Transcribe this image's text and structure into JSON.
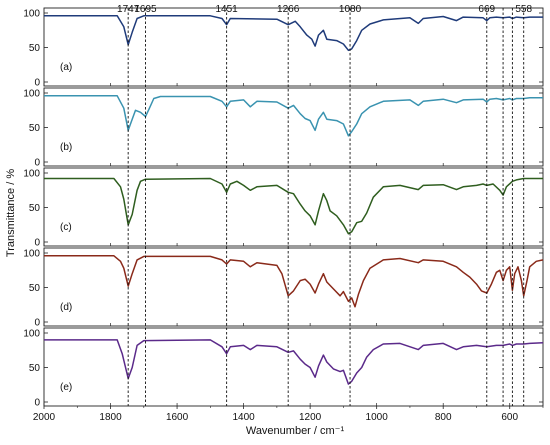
{
  "chart_data": {
    "type": "line",
    "xlabel": "Wavenumber / cm⁻¹",
    "ylabel": "Transmittance / %",
    "xlim": [
      2000,
      500
    ],
    "x_reversed": true,
    "x_ticks": [
      2000,
      1800,
      1600,
      1400,
      1200,
      1000,
      800,
      600
    ],
    "ylim": [
      0,
      100
    ],
    "y_ticks": [
      0,
      50,
      100
    ],
    "grid": false,
    "reference_lines": [
      1747,
      1695,
      1451,
      1266,
      1080,
      669,
      620,
      592,
      558
    ],
    "peak_labels": [
      1747,
      1695,
      1451,
      1266,
      1080,
      669,
      558
    ],
    "panels": [
      {
        "label": "(a)",
        "color": "#1f3b7a",
        "baseline": 96,
        "points": [
          [
            2000,
            96
          ],
          [
            1780,
            96
          ],
          [
            1760,
            80
          ],
          [
            1747,
            54
          ],
          [
            1735,
            72
          ],
          [
            1720,
            92
          ],
          [
            1700,
            96
          ],
          [
            1500,
            96
          ],
          [
            1465,
            92
          ],
          [
            1451,
            83
          ],
          [
            1440,
            92
          ],
          [
            1300,
            91
          ],
          [
            1266,
            83
          ],
          [
            1245,
            88
          ],
          [
            1230,
            80
          ],
          [
            1210,
            68
          ],
          [
            1195,
            62
          ],
          [
            1185,
            52
          ],
          [
            1175,
            68
          ],
          [
            1160,
            75
          ],
          [
            1150,
            62
          ],
          [
            1120,
            60
          ],
          [
            1100,
            55
          ],
          [
            1085,
            46
          ],
          [
            1075,
            48
          ],
          [
            1060,
            60
          ],
          [
            1045,
            75
          ],
          [
            1020,
            84
          ],
          [
            980,
            90
          ],
          [
            900,
            93
          ],
          [
            875,
            85
          ],
          [
            860,
            92
          ],
          [
            800,
            95
          ],
          [
            760,
            89
          ],
          [
            740,
            94
          ],
          [
            680,
            93
          ],
          [
            669,
            89
          ],
          [
            660,
            93
          ],
          [
            640,
            94
          ],
          [
            620,
            93
          ],
          [
            600,
            94
          ],
          [
            592,
            92
          ],
          [
            580,
            94
          ],
          [
            558,
            93
          ],
          [
            540,
            94
          ],
          [
            500,
            94
          ]
        ]
      },
      {
        "label": "(b)",
        "color": "#3a93b0",
        "baseline": 96,
        "points": [
          [
            2000,
            96
          ],
          [
            1780,
            96
          ],
          [
            1760,
            78
          ],
          [
            1747,
            46
          ],
          [
            1735,
            62
          ],
          [
            1725,
            75
          ],
          [
            1710,
            72
          ],
          [
            1695,
            66
          ],
          [
            1685,
            76
          ],
          [
            1670,
            92
          ],
          [
            1650,
            95
          ],
          [
            1500,
            95
          ],
          [
            1465,
            88
          ],
          [
            1451,
            80
          ],
          [
            1440,
            88
          ],
          [
            1400,
            90
          ],
          [
            1380,
            80
          ],
          [
            1360,
            88
          ],
          [
            1300,
            87
          ],
          [
            1266,
            78
          ],
          [
            1250,
            82
          ],
          [
            1230,
            70
          ],
          [
            1215,
            63
          ],
          [
            1200,
            60
          ],
          [
            1185,
            46
          ],
          [
            1175,
            62
          ],
          [
            1160,
            72
          ],
          [
            1150,
            62
          ],
          [
            1120,
            60
          ],
          [
            1100,
            55
          ],
          [
            1085,
            38
          ],
          [
            1075,
            44
          ],
          [
            1060,
            55
          ],
          [
            1045,
            70
          ],
          [
            1020,
            80
          ],
          [
            980,
            88
          ],
          [
            900,
            90
          ],
          [
            875,
            82
          ],
          [
            860,
            88
          ],
          [
            800,
            91
          ],
          [
            760,
            86
          ],
          [
            740,
            90
          ],
          [
            680,
            91
          ],
          [
            669,
            87
          ],
          [
            660,
            91
          ],
          [
            640,
            92
          ],
          [
            620,
            90
          ],
          [
            600,
            92
          ],
          [
            592,
            90
          ],
          [
            580,
            92
          ],
          [
            558,
            92
          ],
          [
            540,
            93
          ],
          [
            500,
            93
          ]
        ]
      },
      {
        "label": "(c)",
        "color": "#2f5e1f",
        "baseline": 92,
        "points": [
          [
            2000,
            92
          ],
          [
            1790,
            92
          ],
          [
            1770,
            80
          ],
          [
            1760,
            62
          ],
          [
            1747,
            25
          ],
          [
            1735,
            40
          ],
          [
            1720,
            75
          ],
          [
            1710,
            88
          ],
          [
            1695,
            91
          ],
          [
            1500,
            92
          ],
          [
            1465,
            84
          ],
          [
            1451,
            72
          ],
          [
            1440,
            84
          ],
          [
            1420,
            88
          ],
          [
            1400,
            82
          ],
          [
            1380,
            75
          ],
          [
            1360,
            80
          ],
          [
            1300,
            82
          ],
          [
            1266,
            72
          ],
          [
            1250,
            70
          ],
          [
            1230,
            55
          ],
          [
            1215,
            45
          ],
          [
            1200,
            38
          ],
          [
            1185,
            25
          ],
          [
            1175,
            45
          ],
          [
            1160,
            70
          ],
          [
            1150,
            60
          ],
          [
            1140,
            45
          ],
          [
            1120,
            38
          ],
          [
            1100,
            25
          ],
          [
            1085,
            12
          ],
          [
            1075,
            15
          ],
          [
            1060,
            28
          ],
          [
            1045,
            30
          ],
          [
            1030,
            42
          ],
          [
            1010,
            65
          ],
          [
            980,
            80
          ],
          [
            930,
            82
          ],
          [
            875,
            76
          ],
          [
            860,
            82
          ],
          [
            800,
            83
          ],
          [
            760,
            76
          ],
          [
            740,
            80
          ],
          [
            700,
            82
          ],
          [
            680,
            84
          ],
          [
            669,
            82
          ],
          [
            650,
            84
          ],
          [
            630,
            75
          ],
          [
            620,
            68
          ],
          [
            610,
            80
          ],
          [
            592,
            88
          ],
          [
            580,
            90
          ],
          [
            558,
            92
          ],
          [
            540,
            92
          ],
          [
            500,
            92
          ]
        ]
      },
      {
        "label": "(d)",
        "color": "#8a2a1a",
        "baseline": 96,
        "points": [
          [
            2000,
            96
          ],
          [
            1790,
            96
          ],
          [
            1770,
            88
          ],
          [
            1760,
            78
          ],
          [
            1747,
            52
          ],
          [
            1735,
            70
          ],
          [
            1720,
            90
          ],
          [
            1700,
            95
          ],
          [
            1500,
            95
          ],
          [
            1465,
            90
          ],
          [
            1451,
            84
          ],
          [
            1440,
            90
          ],
          [
            1400,
            88
          ],
          [
            1380,
            80
          ],
          [
            1360,
            86
          ],
          [
            1300,
            82
          ],
          [
            1285,
            70
          ],
          [
            1266,
            38
          ],
          [
            1250,
            45
          ],
          [
            1230,
            60
          ],
          [
            1215,
            62
          ],
          [
            1200,
            55
          ],
          [
            1185,
            42
          ],
          [
            1175,
            55
          ],
          [
            1160,
            70
          ],
          [
            1150,
            58
          ],
          [
            1130,
            48
          ],
          [
            1110,
            38
          ],
          [
            1100,
            44
          ],
          [
            1085,
            30
          ],
          [
            1075,
            35
          ],
          [
            1065,
            22
          ],
          [
            1055,
            40
          ],
          [
            1040,
            60
          ],
          [
            1020,
            78
          ],
          [
            980,
            90
          ],
          [
            930,
            92
          ],
          [
            875,
            86
          ],
          [
            860,
            90
          ],
          [
            800,
            88
          ],
          [
            760,
            80
          ],
          [
            740,
            72
          ],
          [
            720,
            65
          ],
          [
            700,
            55
          ],
          [
            685,
            45
          ],
          [
            669,
            42
          ],
          [
            655,
            55
          ],
          [
            640,
            72
          ],
          [
            630,
            75
          ],
          [
            620,
            60
          ],
          [
            610,
            75
          ],
          [
            600,
            80
          ],
          [
            592,
            46
          ],
          [
            585,
            70
          ],
          [
            575,
            80
          ],
          [
            565,
            60
          ],
          [
            558,
            38
          ],
          [
            548,
            60
          ],
          [
            540,
            80
          ],
          [
            520,
            88
          ],
          [
            500,
            90
          ]
        ]
      },
      {
        "label": "(e)",
        "color": "#5b2a8a",
        "baseline": 90,
        "points": [
          [
            2000,
            90
          ],
          [
            1780,
            90
          ],
          [
            1765,
            70
          ],
          [
            1747,
            34
          ],
          [
            1735,
            50
          ],
          [
            1720,
            82
          ],
          [
            1700,
            89
          ],
          [
            1500,
            90
          ],
          [
            1465,
            80
          ],
          [
            1451,
            70
          ],
          [
            1440,
            80
          ],
          [
            1400,
            82
          ],
          [
            1380,
            76
          ],
          [
            1360,
            82
          ],
          [
            1300,
            80
          ],
          [
            1266,
            72
          ],
          [
            1250,
            74
          ],
          [
            1230,
            62
          ],
          [
            1215,
            55
          ],
          [
            1200,
            50
          ],
          [
            1185,
            36
          ],
          [
            1175,
            52
          ],
          [
            1160,
            68
          ],
          [
            1150,
            58
          ],
          [
            1130,
            48
          ],
          [
            1110,
            44
          ],
          [
            1100,
            46
          ],
          [
            1085,
            26
          ],
          [
            1075,
            30
          ],
          [
            1060,
            42
          ],
          [
            1045,
            50
          ],
          [
            1030,
            65
          ],
          [
            1010,
            76
          ],
          [
            980,
            84
          ],
          [
            930,
            85
          ],
          [
            875,
            76
          ],
          [
            860,
            82
          ],
          [
            800,
            85
          ],
          [
            760,
            76
          ],
          [
            740,
            80
          ],
          [
            700,
            82
          ],
          [
            669,
            80
          ],
          [
            640,
            82
          ],
          [
            620,
            82
          ],
          [
            600,
            84
          ],
          [
            592,
            82
          ],
          [
            580,
            84
          ],
          [
            558,
            84
          ],
          [
            540,
            85
          ],
          [
            500,
            86
          ]
        ]
      }
    ]
  }
}
